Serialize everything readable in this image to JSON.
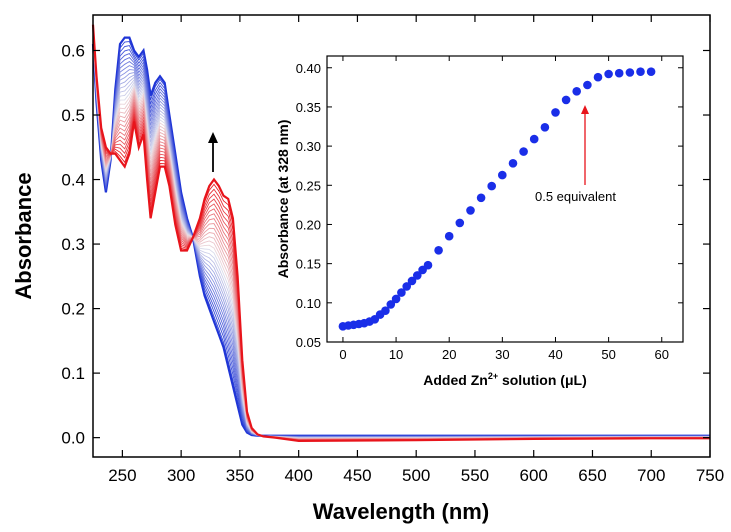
{
  "chart_data": [
    {
      "type": "line",
      "title": "",
      "xlabel": "Wavelength (nm)",
      "ylabel": "Absorbance",
      "xlim": [
        225,
        750
      ],
      "ylim": [
        -0.03,
        0.655
      ],
      "xticks": [
        250,
        300,
        350,
        400,
        450,
        500,
        550,
        600,
        650,
        700,
        750
      ],
      "yticks": [
        0.0,
        0.1,
        0.2,
        0.3,
        0.4,
        0.5,
        0.6
      ],
      "ytick_labels": [
        "0.0",
        "0.1",
        "0.2",
        "0.3",
        "0.4",
        "0.5",
        "0.6"
      ],
      "grid": false,
      "legend": "none",
      "series_count": 30,
      "colors": {
        "start": "#1f35d6",
        "end": "#e8141b"
      },
      "annotation": "arrow-up at 328 nm",
      "spectra": {
        "x": [
          225,
          228,
          232,
          236,
          240,
          244,
          248,
          252,
          256,
          260,
          264,
          268,
          271,
          274,
          278,
          282,
          286,
          290,
          295,
          300,
          305,
          310,
          316,
          320,
          324,
          328,
          332,
          336,
          340,
          344,
          348,
          352,
          356,
          360,
          365,
          370,
          380,
          400,
          500,
          600,
          700,
          750
        ],
        "start": [
          0.61,
          0.52,
          0.43,
          0.38,
          0.43,
          0.54,
          0.61,
          0.62,
          0.62,
          0.6,
          0.59,
          0.6,
          0.57,
          0.53,
          0.55,
          0.56,
          0.55,
          0.5,
          0.44,
          0.38,
          0.34,
          0.31,
          0.25,
          0.22,
          0.2,
          0.18,
          0.16,
          0.14,
          0.11,
          0.08,
          0.05,
          0.02,
          0.008,
          0.004,
          0.003,
          0.003,
          0.003,
          0.003,
          0.003,
          0.003,
          0.003,
          0.003
        ],
        "end": [
          0.64,
          0.56,
          0.48,
          0.45,
          0.44,
          0.44,
          0.43,
          0.42,
          0.44,
          0.49,
          0.45,
          0.47,
          0.4,
          0.34,
          0.38,
          0.42,
          0.42,
          0.39,
          0.33,
          0.29,
          0.29,
          0.31,
          0.34,
          0.37,
          0.39,
          0.4,
          0.39,
          0.375,
          0.37,
          0.34,
          0.25,
          0.12,
          0.04,
          0.015,
          0.005,
          0.002,
          0.0,
          -0.005,
          -0.004,
          -0.002,
          -0.001,
          -0.001
        ]
      }
    },
    {
      "type": "scatter",
      "title": "",
      "xlabel": "Added Zn",
      "xlabel_sup": "2+",
      "xlabel_tail": " solution (μL)",
      "ylabel": "Absorbance (at 328 nm)",
      "xlim": [
        -3,
        64
      ],
      "ylim": [
        0.05,
        0.415
      ],
      "xticks": [
        0,
        10,
        20,
        30,
        40,
        50,
        60
      ],
      "yticks": [
        0.05,
        0.1,
        0.15,
        0.2,
        0.25,
        0.3,
        0.35,
        0.4
      ],
      "ytick_labels": [
        "0.05",
        "0.10",
        "0.15",
        "0.20",
        "0.25",
        "0.30",
        "0.35",
        "0.40"
      ],
      "marker_color": "#1a2ee8",
      "annotation": {
        "text": "0.5 equivalent",
        "x": 45,
        "color": "#e8141b"
      },
      "x": [
        0,
        1,
        2,
        3,
        4,
        5,
        6,
        7,
        8,
        9,
        10,
        11,
        12,
        13,
        14,
        15,
        16,
        18,
        20,
        22,
        24,
        26,
        28,
        30,
        32,
        34,
        36,
        38,
        40,
        42,
        44,
        46,
        48,
        50,
        52,
        54,
        56,
        58
      ],
      "y": [
        0.07,
        0.071,
        0.072,
        0.073,
        0.074,
        0.076,
        0.079,
        0.085,
        0.09,
        0.098,
        0.105,
        0.113,
        0.121,
        0.128,
        0.135,
        0.142,
        0.148,
        0.167,
        0.185,
        0.202,
        0.218,
        0.234,
        0.249,
        0.263,
        0.278,
        0.293,
        0.309,
        0.324,
        0.343,
        0.359,
        0.37,
        0.378,
        0.388,
        0.392,
        0.393,
        0.394,
        0.395,
        0.395
      ]
    }
  ]
}
